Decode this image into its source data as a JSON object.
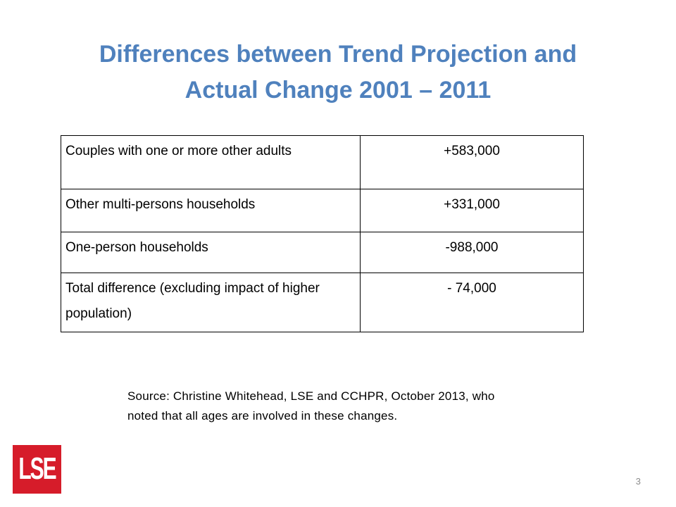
{
  "title": {
    "line1": "Differences between Trend Projection and",
    "line2": "Actual Change 2001 – 2011"
  },
  "table": {
    "rows": [
      {
        "label": "Couples with one or more other adults",
        "value": "+583,000"
      },
      {
        "label": "Other multi-persons households",
        "value": "+331,000"
      },
      {
        "label": "One-person households",
        "value": "-988,000"
      },
      {
        "label": "Total difference (excluding impact of higher population)",
        "value": "- 74,000"
      }
    ]
  },
  "source": {
    "line1": "Source: Christine Whitehead, LSE and CCHPR, October 2013, who",
    "line2": "noted that all ages are involved in these changes."
  },
  "logo": {
    "text": "LSE",
    "color": "#d61c2a"
  },
  "page_number": "3",
  "colors": {
    "title": "#4f81bd"
  }
}
